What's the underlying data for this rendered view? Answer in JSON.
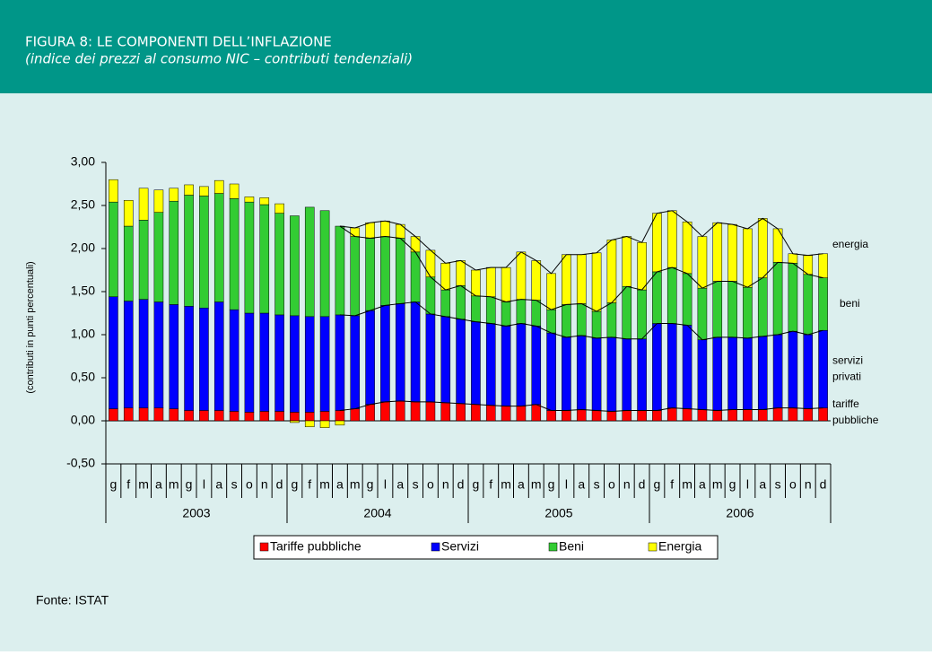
{
  "header": {
    "title": "FIGURA 8: LE COMPONENTI DELL’INFLAZIONE",
    "subtitle": "(indice dei prezzi al consumo NIC – contributi tendenziali)"
  },
  "chart_data": {
    "type": "stacked_bar",
    "ylabel": "(contributi in punti percentuali)",
    "categories": [
      "g",
      "f",
      "m",
      "a",
      "m",
      "g",
      "l",
      "a",
      "s",
      "o",
      "n",
      "d",
      "g",
      "f",
      "m",
      "a",
      "m",
      "g",
      "l",
      "a",
      "s",
      "o",
      "n",
      "d",
      "g",
      "f",
      "m",
      "a",
      "m",
      "g",
      "l",
      "a",
      "s",
      "o",
      "n",
      "d",
      "g",
      "f",
      "m",
      "a",
      "m",
      "g",
      "l",
      "a",
      "s",
      "o",
      "n",
      "d"
    ],
    "groups": [
      "2003",
      "2004",
      "2005",
      "2006"
    ],
    "series": [
      {
        "name": "Tariffe pubbliche",
        "color": "#ff0000",
        "values": [
          0.14,
          0.15,
          0.15,
          0.15,
          0.14,
          0.12,
          0.12,
          0.12,
          0.11,
          0.1,
          0.11,
          0.11,
          0.1,
          0.1,
          0.11,
          0.12,
          0.14,
          0.19,
          0.22,
          0.23,
          0.22,
          0.22,
          0.21,
          0.2,
          0.19,
          0.18,
          0.17,
          0.17,
          0.19,
          0.12,
          0.12,
          0.13,
          0.12,
          0.11,
          0.12,
          0.12,
          0.12,
          0.15,
          0.14,
          0.13,
          0.12,
          0.13,
          0.13,
          0.13,
          0.15,
          0.15,
          0.14,
          0.15
        ]
      },
      {
        "name": "Servizi",
        "color": "#0000ff",
        "values": [
          1.3,
          1.24,
          1.26,
          1.23,
          1.21,
          1.21,
          1.19,
          1.26,
          1.18,
          1.15,
          1.14,
          1.12,
          1.12,
          1.11,
          1.1,
          1.11,
          1.08,
          1.09,
          1.12,
          1.13,
          1.16,
          1.02,
          1.0,
          0.98,
          0.96,
          0.95,
          0.93,
          0.96,
          0.91,
          0.9,
          0.85,
          0.86,
          0.84,
          0.86,
          0.83,
          0.83,
          1.01,
          0.98,
          0.97,
          0.81,
          0.85,
          0.84,
          0.83,
          0.85,
          0.85,
          0.89,
          0.86,
          0.9
        ]
      },
      {
        "name": "Beni",
        "color": "#33cc33",
        "values": [
          1.1,
          0.87,
          0.92,
          1.04,
          1.2,
          1.29,
          1.3,
          1.26,
          1.29,
          1.29,
          1.26,
          1.18,
          1.16,
          1.27,
          1.23,
          1.03,
          0.92,
          0.84,
          0.8,
          0.76,
          0.58,
          0.43,
          0.31,
          0.39,
          0.3,
          0.31,
          0.28,
          0.28,
          0.3,
          0.27,
          0.38,
          0.37,
          0.31,
          0.4,
          0.61,
          0.57,
          0.6,
          0.65,
          0.6,
          0.6,
          0.65,
          0.65,
          0.59,
          0.68,
          0.84,
          0.79,
          0.7,
          0.61
        ]
      },
      {
        "name": "Energia",
        "color": "#ffff00",
        "values": [
          0.26,
          0.3,
          0.37,
          0.26,
          0.15,
          0.12,
          0.11,
          0.15,
          0.17,
          0.06,
          0.08,
          0.11,
          -0.02,
          -0.07,
          -0.08,
          -0.05,
          0.1,
          0.18,
          0.18,
          0.16,
          0.18,
          0.31,
          0.31,
          0.29,
          0.3,
          0.34,
          0.4,
          0.55,
          0.46,
          0.42,
          0.58,
          0.57,
          0.68,
          0.73,
          0.58,
          0.55,
          0.68,
          0.66,
          0.6,
          0.6,
          0.68,
          0.66,
          0.68,
          0.69,
          0.39,
          0.11,
          0.22,
          0.28
        ]
      }
    ],
    "annotations": [
      [
        "energia"
      ],
      [
        "beni"
      ],
      [
        "servizi",
        "privati"
      ],
      [
        "tariffe",
        "pubbliche"
      ]
    ],
    "ylim": [
      -0.5,
      3.0
    ],
    "yticks": [
      {
        "value": -0.5,
        "label": "-0,50"
      },
      {
        "value": 0,
        "label": "0,00"
      },
      {
        "value": 0.5,
        "label": "0,50"
      },
      {
        "value": 1.0,
        "label": "1,00"
      },
      {
        "value": 1.5,
        "label": "1,50"
      },
      {
        "value": 2.0,
        "label": "2,00"
      },
      {
        "value": 2.5,
        "label": "2,50"
      },
      {
        "value": 3.0,
        "label": "3,00"
      }
    ],
    "legend": "bottom"
  },
  "footer": {
    "source": "Fonte: ISTAT"
  }
}
